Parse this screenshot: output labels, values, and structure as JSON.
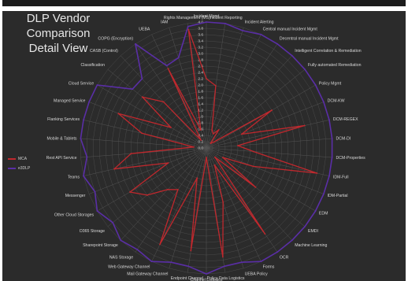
{
  "chart_data": {
    "type": "radar",
    "title": "DLP Vendor Comparison Detail View",
    "title_lines": [
      "DLP Vendor",
      "Comparison",
      "Detail View"
    ],
    "rlim": [
      0,
      4
    ],
    "ticks": [
      "0.0",
      "0.2",
      "0.4",
      "0.6",
      "0.8",
      "1.0",
      "1.2",
      "1.4",
      "1.6",
      "1.8",
      "2.0",
      "2.2",
      "2.4",
      "2.6",
      "2.8",
      "3.0",
      "3.2",
      "3.4",
      "3.6",
      "3.8",
      "4.0"
    ],
    "tick_values": [
      0,
      0.2,
      0.4,
      0.6,
      0.8,
      1.0,
      1.2,
      1.4,
      1.6,
      1.8,
      2.0,
      2.2,
      2.4,
      2.6,
      2.8,
      3.0,
      3.2,
      3.4,
      3.6,
      3.8,
      4.0
    ],
    "grid": true,
    "legend_position": "left",
    "categories": [
      "Incident Mgmt",
      "Incident Reporting",
      "Incident Alerting",
      "Central manual Incident Mgmt",
      "Decentral manual Incident Mgmt",
      "Intelligent Correlation & Remediation",
      "Fully automated Remediation",
      "Policy Mgmt",
      "DCM-KW",
      "DCM-REGEX",
      "DCM-DI",
      "DCM-Properties",
      "IDM-Full",
      "IDM-Partial",
      "EDM",
      "EMDI",
      "Machine Learning",
      "OCR",
      "Forms",
      "UEBA Policy",
      "Policy Data Logistics",
      "Channel Logistics",
      "Endpoint Channel",
      "Mail Gateway Channel",
      "Web Gateway Channel",
      "NAS Storage",
      "Sharepoint Storage",
      "O365 Storage",
      "Other Cloud Storages",
      "Messenger",
      "Teams",
      "Rest API Service",
      "Mobile & Tablets",
      "Flanking Services",
      "Managed Service",
      "Cloud Service",
      "Classification",
      "CASB (Control)",
      "COPG (Encryption)",
      "UEBA",
      "IAM",
      "Rights Management (MS)"
    ],
    "series": [
      {
        "name": "MCA",
        "color": "#c0282d",
        "values": [
          2.2,
          2.0,
          0.6,
          0.5,
          0.7,
          0.2,
          0.3,
          2.4,
          1.2,
          3.2,
          1.0,
          1.5,
          3.6,
          1.6,
          0.6,
          2.0,
          0.4,
          3.3,
          0.6,
          1.8,
          3.5,
          0.3,
          3.3,
          1.0,
          3.4,
          1.6,
          1.8,
          2.4,
          2.8,
          1.3,
          3.0,
          2.4,
          0.4,
          2.1,
          3.0,
          1.3,
          2.6,
          2.0,
          0.3,
          2.8,
          0.6,
          3.8
        ]
      },
      {
        "name": "e3DLP",
        "color": "#5a2ea6",
        "values": [
          4.0,
          4.0,
          3.9,
          4.0,
          4.0,
          4.0,
          4.0,
          4.0,
          4.0,
          4.0,
          4.0,
          4.0,
          4.0,
          4.0,
          4.0,
          4.0,
          4.0,
          4.0,
          4.0,
          3.8,
          3.8,
          4.0,
          3.8,
          3.8,
          4.0,
          3.9,
          4.0,
          3.8,
          4.0,
          3.8,
          4.0,
          3.8,
          4.0,
          4.0,
          4.0,
          4.0,
          3.0,
          3.0,
          4.0,
          2.9,
          3.0,
          3.9
        ]
      }
    ]
  }
}
